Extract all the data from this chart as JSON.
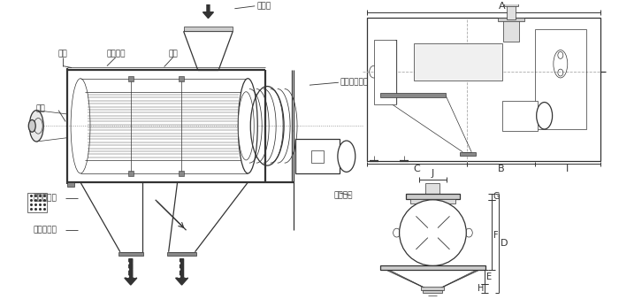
{
  "bg_color": "#ffffff",
  "line_color": "#333333",
  "thin_line": 0.5,
  "medium_line": 0.9,
  "thick_line": 1.6,
  "labels": {
    "wind_wheel": "风轮",
    "blade": "风轮叶片",
    "screen": "网架",
    "main_shaft": "主轴",
    "inlet": "进料口",
    "screw": "螺旋输送系统",
    "coarse_out": "粗料排出口",
    "fine_out": "细料排出口",
    "motor": "驱动电机",
    "dim_A": "A",
    "dim_B": "B",
    "dim_C": "C",
    "dim_I": "I",
    "dim_J": "J",
    "dim_G": "G",
    "dim_F": "F",
    "dim_D": "D",
    "dim_E": "E",
    "dim_H": "H"
  }
}
